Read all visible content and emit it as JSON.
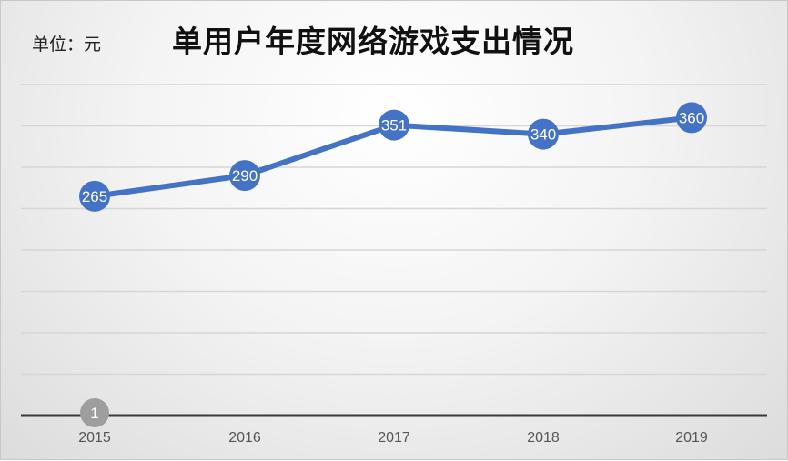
{
  "unit_label": "单位：元",
  "chart_data": {
    "type": "line",
    "title": "单用户年度网络游戏支出情况",
    "categories": [
      "2015",
      "2016",
      "2017",
      "2018",
      "2019"
    ],
    "series": [
      {
        "values": [
          265,
          290,
          351,
          340,
          360
        ]
      }
    ],
    "ylim": [
      0,
      400
    ],
    "grid": true,
    "legend": "none",
    "xlabel": "",
    "ylabel": "",
    "marker_badge": "1",
    "colors": {
      "line": "#4472c4",
      "grid": "#d6d6d6",
      "axis": "#3a3a3a",
      "badge": "#9e9e9e"
    }
  }
}
